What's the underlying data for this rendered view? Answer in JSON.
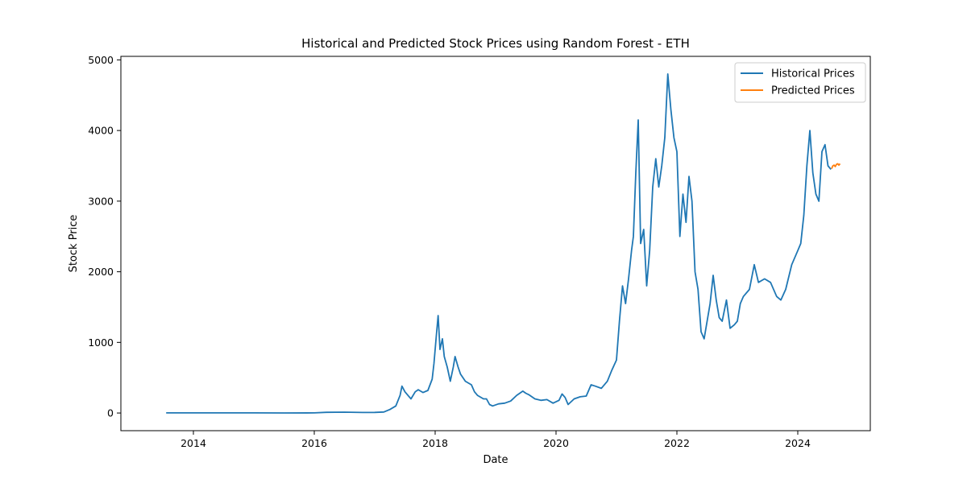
{
  "chart_data": {
    "type": "line",
    "title": "Historical and Predicted Stock Prices using Random Forest - ETH",
    "xlabel": "Date",
    "ylabel": "Stock Price",
    "xlim": [
      2012.8,
      2025.2
    ],
    "ylim": [
      -250,
      5050
    ],
    "x_ticks": [
      2014,
      2016,
      2018,
      2020,
      2022,
      2024
    ],
    "x_tick_labels": [
      "2014",
      "2016",
      "2018",
      "2020",
      "2022",
      "2024"
    ],
    "y_ticks": [
      0,
      1000,
      2000,
      3000,
      4000,
      5000
    ],
    "y_tick_labels": [
      "0",
      "1000",
      "2000",
      "3000",
      "4000",
      "5000"
    ],
    "grid": false,
    "legend": "top-right",
    "series": [
      {
        "name": "Historical Prices",
        "color": "#1f77b4",
        "points": [
          [
            2013.55,
            2
          ],
          [
            2014.0,
            2
          ],
          [
            2015.0,
            2
          ],
          [
            2015.5,
            1
          ],
          [
            2016.0,
            2
          ],
          [
            2016.2,
            10
          ],
          [
            2016.5,
            12
          ],
          [
            2016.8,
            8
          ],
          [
            2017.0,
            9
          ],
          [
            2017.15,
            15
          ],
          [
            2017.25,
            50
          ],
          [
            2017.35,
            100
          ],
          [
            2017.42,
            250
          ],
          [
            2017.45,
            380
          ],
          [
            2017.5,
            300
          ],
          [
            2017.55,
            250
          ],
          [
            2017.6,
            200
          ],
          [
            2017.67,
            300
          ],
          [
            2017.72,
            330
          ],
          [
            2017.8,
            290
          ],
          [
            2017.88,
            320
          ],
          [
            2017.95,
            480
          ],
          [
            2017.98,
            700
          ],
          [
            2018.02,
            1100
          ],
          [
            2018.05,
            1380
          ],
          [
            2018.08,
            900
          ],
          [
            2018.12,
            1050
          ],
          [
            2018.15,
            800
          ],
          [
            2018.2,
            650
          ],
          [
            2018.25,
            450
          ],
          [
            2018.3,
            650
          ],
          [
            2018.33,
            800
          ],
          [
            2018.38,
            650
          ],
          [
            2018.42,
            550
          ],
          [
            2018.5,
            450
          ],
          [
            2018.6,
            400
          ],
          [
            2018.65,
            300
          ],
          [
            2018.7,
            250
          ],
          [
            2018.8,
            200
          ],
          [
            2018.85,
            200
          ],
          [
            2018.9,
            120
          ],
          [
            2018.95,
            100
          ],
          [
            2019.05,
            130
          ],
          [
            2019.15,
            140
          ],
          [
            2019.25,
            170
          ],
          [
            2019.35,
            250
          ],
          [
            2019.45,
            310
          ],
          [
            2019.5,
            280
          ],
          [
            2019.55,
            260
          ],
          [
            2019.65,
            200
          ],
          [
            2019.75,
            180
          ],
          [
            2019.85,
            190
          ],
          [
            2019.95,
            140
          ],
          [
            2020.05,
            180
          ],
          [
            2020.1,
            270
          ],
          [
            2020.15,
            220
          ],
          [
            2020.2,
            120
          ],
          [
            2020.3,
            200
          ],
          [
            2020.4,
            230
          ],
          [
            2020.5,
            240
          ],
          [
            2020.58,
            400
          ],
          [
            2020.65,
            380
          ],
          [
            2020.75,
            350
          ],
          [
            2020.85,
            450
          ],
          [
            2020.92,
            600
          ],
          [
            2021.0,
            750
          ],
          [
            2021.05,
            1300
          ],
          [
            2021.1,
            1800
          ],
          [
            2021.15,
            1550
          ],
          [
            2021.2,
            1900
          ],
          [
            2021.25,
            2300
          ],
          [
            2021.28,
            2500
          ],
          [
            2021.32,
            3400
          ],
          [
            2021.36,
            4150
          ],
          [
            2021.4,
            2400
          ],
          [
            2021.45,
            2600
          ],
          [
            2021.5,
            1800
          ],
          [
            2021.55,
            2300
          ],
          [
            2021.6,
            3200
          ],
          [
            2021.65,
            3600
          ],
          [
            2021.7,
            3200
          ],
          [
            2021.75,
            3500
          ],
          [
            2021.8,
            3900
          ],
          [
            2021.85,
            4800
          ],
          [
            2021.9,
            4300
          ],
          [
            2021.95,
            3900
          ],
          [
            2022.0,
            3700
          ],
          [
            2022.05,
            2500
          ],
          [
            2022.1,
            3100
          ],
          [
            2022.15,
            2700
          ],
          [
            2022.2,
            3350
          ],
          [
            2022.25,
            3000
          ],
          [
            2022.3,
            2000
          ],
          [
            2022.35,
            1750
          ],
          [
            2022.4,
            1150
          ],
          [
            2022.45,
            1050
          ],
          [
            2022.5,
            1300
          ],
          [
            2022.55,
            1550
          ],
          [
            2022.6,
            1950
          ],
          [
            2022.65,
            1600
          ],
          [
            2022.7,
            1350
          ],
          [
            2022.75,
            1300
          ],
          [
            2022.82,
            1600
          ],
          [
            2022.88,
            1200
          ],
          [
            2022.95,
            1250
          ],
          [
            2023.0,
            1300
          ],
          [
            2023.05,
            1550
          ],
          [
            2023.1,
            1650
          ],
          [
            2023.2,
            1750
          ],
          [
            2023.28,
            2100
          ],
          [
            2023.35,
            1850
          ],
          [
            2023.45,
            1900
          ],
          [
            2023.55,
            1850
          ],
          [
            2023.65,
            1650
          ],
          [
            2023.72,
            1600
          ],
          [
            2023.8,
            1750
          ],
          [
            2023.9,
            2100
          ],
          [
            2024.0,
            2300
          ],
          [
            2024.05,
            2400
          ],
          [
            2024.1,
            2800
          ],
          [
            2024.15,
            3500
          ],
          [
            2024.2,
            4000
          ],
          [
            2024.25,
            3400
          ],
          [
            2024.3,
            3100
          ],
          [
            2024.35,
            3000
          ],
          [
            2024.4,
            3700
          ],
          [
            2024.45,
            3800
          ],
          [
            2024.5,
            3500
          ],
          [
            2024.55,
            3450
          ]
        ]
      },
      {
        "name": "Predicted Prices",
        "color": "#ff7f0e",
        "points": [
          [
            2024.56,
            3460
          ],
          [
            2024.58,
            3500
          ],
          [
            2024.6,
            3510
          ],
          [
            2024.62,
            3490
          ],
          [
            2024.64,
            3520
          ],
          [
            2024.66,
            3530
          ],
          [
            2024.68,
            3510
          ],
          [
            2024.7,
            3530
          ]
        ]
      }
    ]
  }
}
